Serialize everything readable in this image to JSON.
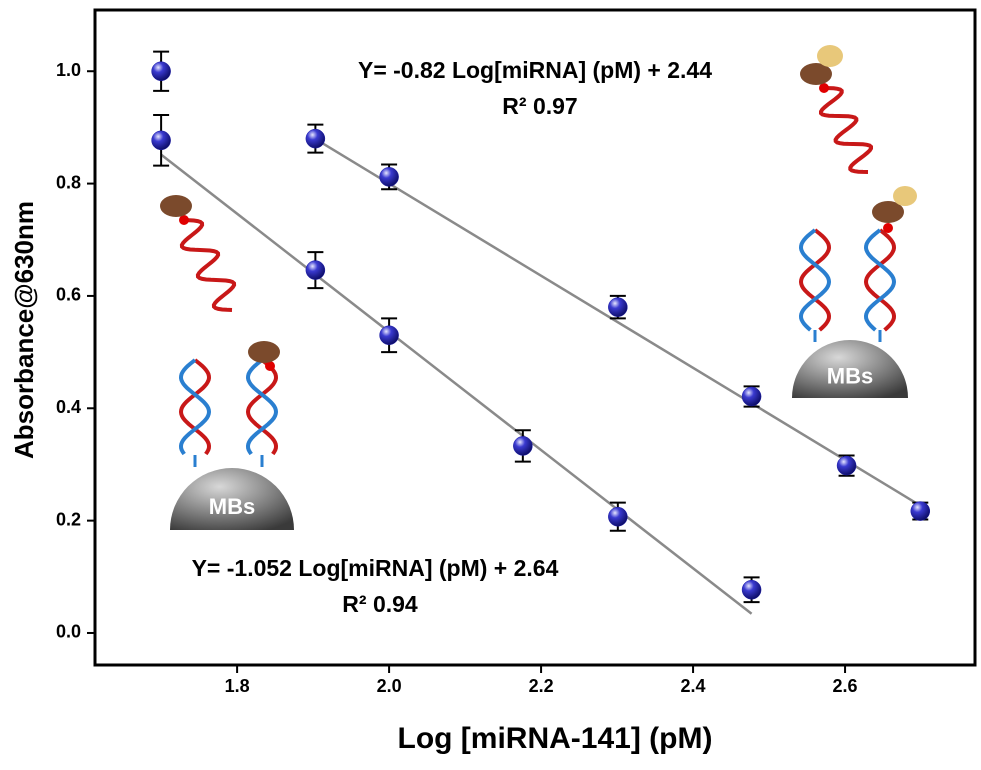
{
  "chart_data": {
    "type": "scatter",
    "x_label": "Log [miRNA-141] (pM)",
    "y_label": "Absorbance@630nm",
    "xlim": [
      1.613,
      2.771
    ],
    "ylim": [
      -0.057,
      1.109
    ],
    "xticks": [
      {
        "value": 1.8,
        "label": "1.8"
      },
      {
        "value": 2,
        "label": "2.0"
      },
      {
        "value": 2.2,
        "label": "2.2"
      },
      {
        "value": 2.4,
        "label": "2.4"
      },
      {
        "value": 2.6,
        "label": "2.6"
      }
    ],
    "yticks": [
      {
        "value": 0,
        "label": "0.0"
      },
      0.2,
      0.4,
      0.6,
      0.8,
      {
        "value": 1,
        "label": "1.0"
      }
    ],
    "series": [
      {
        "color": "#1c1ca8",
        "x": [
          1.7,
          1.903,
          2.0,
          2.176,
          2.301,
          2.477
        ],
        "values": [
          0.877,
          0.646,
          0.53,
          0.333,
          0.207,
          0.077
        ],
        "errors": [
          0.045,
          0.032,
          0.03,
          0.028,
          0.025,
          0.022
        ]
      },
      {
        "color": "#1c1ca8",
        "x": [
          1.7,
          1.903,
          2.0,
          2.301,
          2.477,
          2.602,
          2.699
        ],
        "values": [
          1.0,
          0.88,
          0.812,
          0.58,
          0.421,
          0.298,
          0.217
        ],
        "errors": [
          0.035,
          0.025,
          0.022,
          0.02,
          0.018,
          0.018,
          0.015
        ]
      }
    ],
    "fits": [
      {
        "slope": -1.052,
        "intercept": 2.64,
        "x": [
          1.7,
          2.477
        ],
        "color": "#8a8a8a",
        "equation": "Y= -1.052 Log[miRNA] (pM) + 2.64",
        "r2": "R² 0.94"
      },
      {
        "slope": -0.82,
        "intercept": 2.44,
        "x": [
          1.9,
          2.7
        ],
        "color": "#8a8a8a",
        "equation": "Y= -0.82 Log[miRNA] (pM) + 2.44",
        "r2": "R² 0.97"
      }
    ],
    "illustration_labels": [
      "MBs",
      "MBs"
    ]
  }
}
